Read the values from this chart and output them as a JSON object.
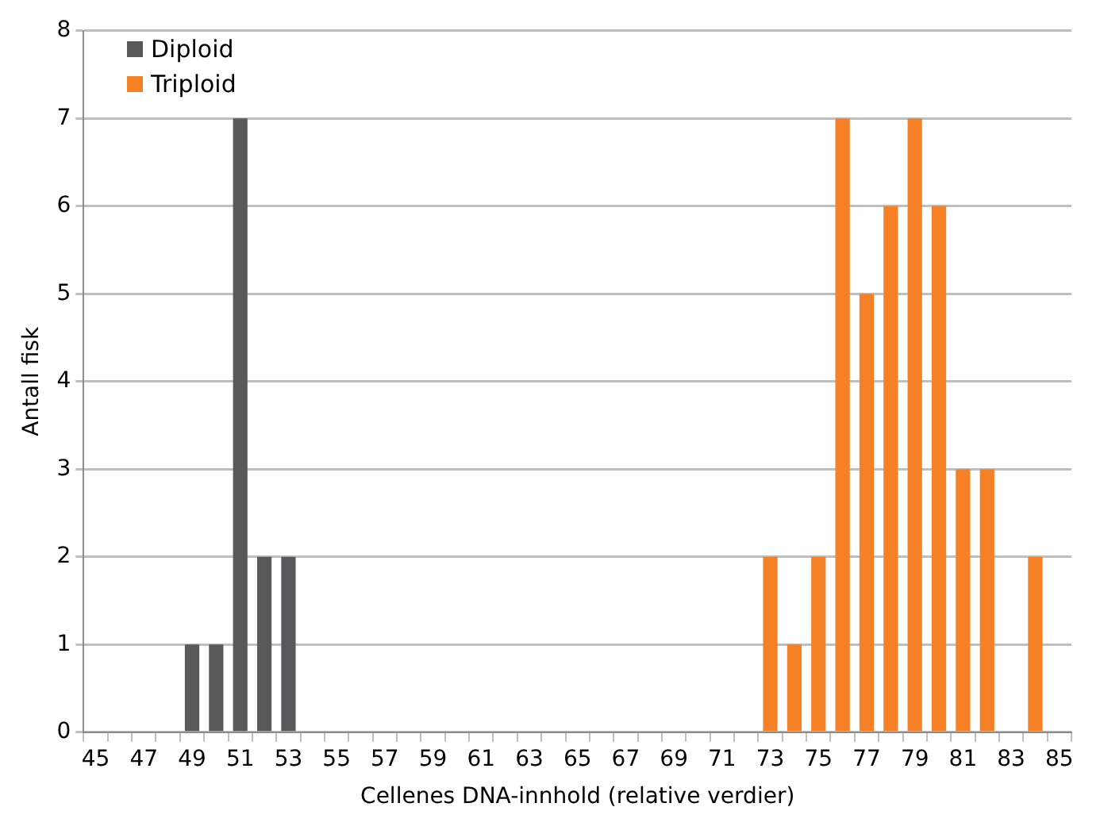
{
  "chart_data": {
    "type": "bar",
    "xlabel": "Cellenes DNA-innhold (relative verdier)",
    "ylabel": "Antall fisk",
    "categories": [
      "45",
      null,
      "47",
      null,
      "49",
      null,
      "51",
      null,
      "53",
      null,
      "55",
      null,
      "57",
      null,
      "59",
      null,
      "61",
      null,
      "63",
      null,
      "65",
      null,
      "67",
      null,
      "69",
      null,
      "71",
      null,
      "73",
      null,
      "75",
      null,
      "77",
      null,
      "79",
      null,
      "81",
      null,
      "83",
      null,
      "85"
    ],
    "series": [
      {
        "name": "Diploid",
        "color": "#58595b",
        "values": [
          null,
          null,
          null,
          null,
          1,
          1,
          7,
          2,
          2,
          null,
          null,
          null,
          null,
          null,
          null,
          null,
          null,
          null,
          null,
          null,
          null,
          null,
          null,
          null,
          null,
          null,
          null,
          null,
          null,
          null,
          null,
          null,
          null,
          null,
          null,
          null,
          null,
          null,
          null,
          null,
          null
        ]
      },
      {
        "name": "Triploid",
        "color": "#f58025",
        "values": [
          null,
          null,
          null,
          null,
          null,
          null,
          null,
          null,
          null,
          null,
          null,
          null,
          null,
          null,
          null,
          null,
          null,
          null,
          null,
          null,
          null,
          null,
          null,
          null,
          null,
          null,
          null,
          null,
          2,
          1,
          2,
          7,
          5,
          6,
          7,
          6,
          3,
          3,
          null,
          2,
          null
        ]
      }
    ],
    "ylim": [
      0,
      8
    ],
    "yticks": [
      0,
      1,
      2,
      3,
      4,
      5,
      6,
      7,
      8
    ],
    "grid": "y",
    "legend": "top left"
  }
}
